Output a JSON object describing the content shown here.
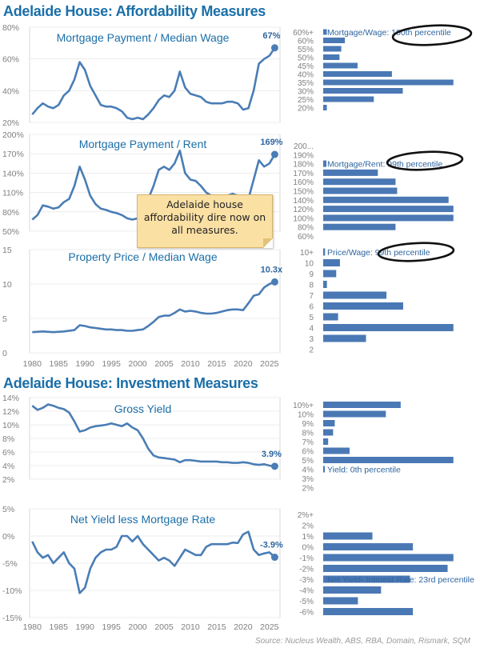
{
  "headers": {
    "affordability": "Adelaide House: Affordability Measures",
    "investment": "Adelaide House: Investment Measures"
  },
  "note": "Adelaide house affordability dire now on all measures.",
  "source": "Source: Nucleus Wealth, ABS, RBA, Domain, Rismark, SQM",
  "colors": {
    "line": "#4a7db5",
    "bar": "#4a78b4",
    "header": "#1b6fa8",
    "note_bg": "#fbe0a4"
  },
  "x_ticks": [
    "1980",
    "1985",
    "1990",
    "1995",
    "2000",
    "2005",
    "2010",
    "2015",
    "2020",
    "2025"
  ],
  "chart_data": [
    {
      "type": "line",
      "title": "Mortgage Payment / Median Wage",
      "ylim": [
        20,
        80
      ],
      "y_ticks": [
        "20%",
        "40%",
        "60%",
        "80%"
      ],
      "end_label": "67%",
      "x": [
        1980,
        1981,
        1982,
        1983,
        1984,
        1985,
        1986,
        1987,
        1988,
        1989,
        1990,
        1991,
        1992,
        1993,
        1994,
        1995,
        1996,
        1997,
        1998,
        1999,
        2000,
        2001,
        2002,
        2003,
        2004,
        2005,
        2006,
        2007,
        2008,
        2009,
        2010,
        2011,
        2012,
        2013,
        2014,
        2015,
        2016,
        2017,
        2018,
        2019,
        2020,
        2021,
        2022,
        2023,
        2024,
        2025,
        2026
      ],
      "y": [
        25,
        29,
        32,
        30,
        29,
        31,
        37,
        40,
        47,
        58,
        53,
        43,
        37,
        31,
        30,
        30,
        29,
        27,
        23,
        22,
        23,
        22,
        25,
        29,
        34,
        37,
        36,
        40,
        52,
        42,
        38,
        37,
        36,
        33,
        32,
        32,
        32,
        33,
        33,
        32,
        28,
        29,
        40,
        57,
        60,
        62,
        67
      ]
    },
    {
      "type": "line",
      "title": "Mortgage Payment / Rent",
      "ylim": [
        50,
        200
      ],
      "y_ticks": [
        "50%",
        "80%",
        "110%",
        "140%",
        "170%",
        "200%"
      ],
      "end_label": "169%",
      "x": [
        1980,
        1981,
        1982,
        1983,
        1984,
        1985,
        1986,
        1987,
        1988,
        1989,
        1990,
        1991,
        1992,
        1993,
        1994,
        1995,
        1996,
        1997,
        1998,
        1999,
        2000,
        2001,
        2002,
        2003,
        2004,
        2005,
        2006,
        2007,
        2008,
        2009,
        2010,
        2011,
        2012,
        2013,
        2014,
        2015,
        2016,
        2017,
        2018,
        2019,
        2020,
        2021,
        2022,
        2023,
        2024,
        2025,
        2026
      ],
      "y": [
        68,
        75,
        90,
        88,
        85,
        87,
        95,
        100,
        120,
        150,
        130,
        105,
        92,
        85,
        83,
        80,
        78,
        75,
        70,
        68,
        70,
        80,
        100,
        120,
        145,
        150,
        145,
        155,
        175,
        140,
        130,
        128,
        120,
        110,
        105,
        105,
        103,
        105,
        108,
        105,
        95,
        100,
        130,
        160,
        150,
        155,
        169
      ]
    },
    {
      "type": "line",
      "title": "Property Price / Median Wage",
      "ylim": [
        0,
        15
      ],
      "y_ticks": [
        "0",
        "5",
        "10",
        "15"
      ],
      "end_label": "10.3x",
      "x": [
        1980,
        1982,
        1984,
        1986,
        1988,
        1989,
        1990,
        1991,
        1992,
        1993,
        1994,
        1995,
        1996,
        1997,
        1998,
        1999,
        2000,
        2001,
        2002,
        2003,
        2004,
        2005,
        2006,
        2007,
        2008,
        2009,
        2010,
        2011,
        2012,
        2013,
        2014,
        2015,
        2016,
        2017,
        2018,
        2019,
        2020,
        2021,
        2022,
        2023,
        2024,
        2025,
        2026
      ],
      "y": [
        3.0,
        3.1,
        3.0,
        3.1,
        3.3,
        4.0,
        3.9,
        3.7,
        3.6,
        3.5,
        3.4,
        3.4,
        3.3,
        3.3,
        3.2,
        3.2,
        3.3,
        3.4,
        3.9,
        4.5,
        5.2,
        5.4,
        5.4,
        5.8,
        6.3,
        6.0,
        6.1,
        6.0,
        5.8,
        5.7,
        5.7,
        5.8,
        6.0,
        6.2,
        6.3,
        6.3,
        6.2,
        7.2,
        8.3,
        8.5,
        9.5,
        10.0,
        10.3
      ]
    },
    {
      "type": "line",
      "title": "Gross Yield",
      "ylim": [
        2,
        14
      ],
      "y_ticks": [
        "2%",
        "4%",
        "6%",
        "8%",
        "10%",
        "12%",
        "14%"
      ],
      "end_label": "3.9%",
      "x": [
        1980,
        1981,
        1982,
        1983,
        1984,
        1985,
        1986,
        1987,
        1988,
        1989,
        1990,
        1991,
        1992,
        1993,
        1994,
        1995,
        1996,
        1997,
        1998,
        1999,
        2000,
        2001,
        2002,
        2003,
        2004,
        2005,
        2006,
        2007,
        2008,
        2009,
        2010,
        2011,
        2012,
        2013,
        2014,
        2015,
        2016,
        2017,
        2018,
        2019,
        2020,
        2021,
        2022,
        2023,
        2024,
        2025,
        2026
      ],
      "y": [
        12.8,
        12.2,
        12.5,
        13.0,
        12.8,
        12.5,
        12.3,
        11.8,
        10.5,
        9.0,
        9.2,
        9.6,
        9.8,
        9.9,
        10.0,
        10.2,
        10.0,
        9.8,
        10.2,
        9.6,
        9.2,
        8.0,
        6.5,
        5.5,
        5.2,
        5.1,
        5.0,
        4.9,
        4.5,
        4.8,
        4.8,
        4.7,
        4.6,
        4.6,
        4.6,
        4.6,
        4.5,
        4.5,
        4.4,
        4.4,
        4.5,
        4.4,
        4.2,
        4.1,
        4.2,
        4.0,
        3.9
      ]
    },
    {
      "type": "line",
      "title": "Net Yield less Mortgage Rate",
      "ylim": [
        -15,
        5
      ],
      "y_ticks": [
        "-15%",
        "-10%",
        "-5%",
        "0%",
        "5%"
      ],
      "end_label": "-3.9%",
      "x": [
        1980,
        1981,
        1982,
        1983,
        1984,
        1985,
        1986,
        1987,
        1988,
        1989,
        1990,
        1991,
        1992,
        1993,
        1994,
        1995,
        1996,
        1997,
        1998,
        1999,
        2000,
        2001,
        2002,
        2003,
        2004,
        2005,
        2006,
        2007,
        2008,
        2009,
        2010,
        2011,
        2012,
        2013,
        2014,
        2015,
        2016,
        2017,
        2018,
        2019,
        2020,
        2021,
        2022,
        2023,
        2024,
        2025,
        2026
      ],
      "y": [
        -1.0,
        -3.0,
        -4.0,
        -3.5,
        -5.0,
        -4.0,
        -3.0,
        -5.0,
        -6.0,
        -10.5,
        -9.5,
        -6.0,
        -4.0,
        -3.0,
        -2.5,
        -2.5,
        -2.0,
        0.0,
        0.0,
        -1.0,
        0.0,
        -1.5,
        -2.5,
        -3.5,
        -4.5,
        -4.0,
        -4.5,
        -5.5,
        -4.0,
        -2.5,
        -3.0,
        -3.5,
        -3.5,
        -2.0,
        -1.5,
        -1.5,
        -1.5,
        -1.5,
        -1.2,
        -1.3,
        0.3,
        0.8,
        -2.5,
        -3.5,
        -3.2,
        -3.0,
        -3.9
      ]
    }
  ],
  "histograms": [
    {
      "type": "bar",
      "categories": [
        "60%+",
        "60%",
        "55%",
        "50%",
        "45%",
        "40%",
        "35%",
        "30%",
        "25%",
        "20%"
      ],
      "values": [
        2,
        12,
        10,
        9,
        19,
        38,
        72,
        44,
        28,
        2
      ],
      "annotation": "Mortgage/Wage: 100th percentile"
    },
    {
      "type": "bar",
      "categories": [
        "200...",
        "190%",
        "180%",
        "170%",
        "160%",
        "150%",
        "140%",
        "120%",
        "100%",
        "80%",
        "60%"
      ],
      "values": [
        0,
        0,
        2,
        34,
        45,
        46,
        78,
        81,
        81,
        45,
        0
      ],
      "annotation": "Mortgage/Rent: 99th percentile"
    },
    {
      "type": "bar",
      "categories": [
        "10+",
        "10",
        "9",
        "8",
        "7",
        "6",
        "5",
        "4",
        "3",
        "2"
      ],
      "values": [
        1,
        9,
        7,
        2,
        34,
        43,
        8,
        70,
        23,
        0
      ],
      "annotation": "Price/Wage: 99th percentile"
    },
    {
      "type": "bar",
      "categories": [
        "10%+",
        "10%",
        "9%",
        "8%",
        "7%",
        "6%",
        "5%",
        "4%",
        "3%",
        "2%"
      ],
      "values": [
        47,
        38,
        7,
        6,
        3,
        16,
        79,
        1,
        0,
        0
      ],
      "annotation": "Yield: 0th percentile"
    },
    {
      "type": "bar",
      "categories": [
        "2%+",
        "2%",
        "1%",
        "0%",
        "-1%",
        "-2%",
        "-3%",
        "-4%",
        "-5%",
        "-6%"
      ],
      "values": [
        0,
        0,
        17,
        31,
        45,
        43,
        30,
        20,
        12,
        31
      ],
      "annotation": "Net Yield- Interest Rate: 23rd percentile"
    }
  ]
}
